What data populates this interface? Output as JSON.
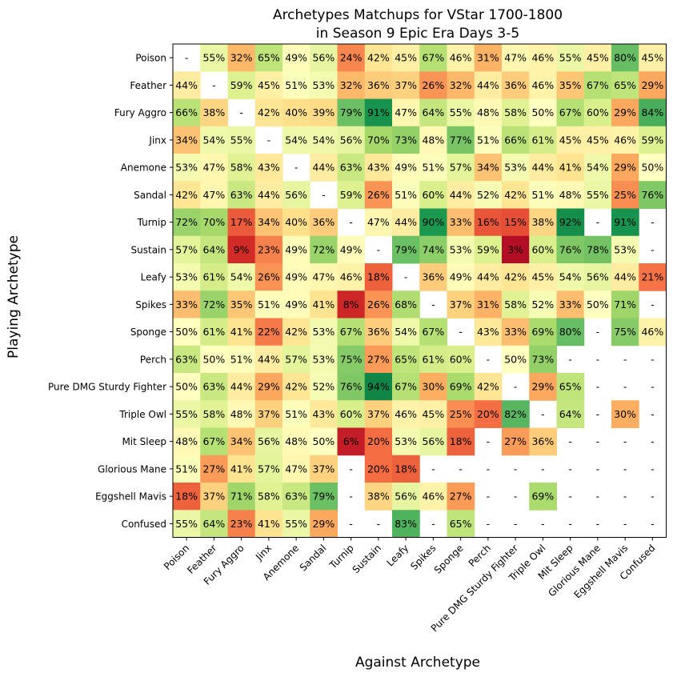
{
  "chart_data": {
    "type": "heatmap",
    "title": "Archetypes Matchups for VStar 1700-1800",
    "subtitle": "in Season 9 Epic Era Days 3-5",
    "xlabel": "Against Archetype",
    "ylabel": "Playing Archetype",
    "rows": [
      "Poison",
      "Feather",
      "Fury Aggro",
      "Jinx",
      "Anemone",
      "Sandal",
      "Turnip",
      "Sustain",
      "Leafy",
      "Spikes",
      "Sponge",
      "Perch",
      "Pure DMG Sturdy Fighter",
      "Triple Owl",
      "Mit Sleep",
      "Glorious Mane",
      "Eggshell Mavis",
      "Confused"
    ],
    "columns": [
      "Poison",
      "Feather",
      "Fury Aggro",
      "Jinx",
      "Anemone",
      "Sandal",
      "Turnip",
      "Sustain",
      "Leafy",
      "Spikes",
      "Sponge",
      "Perch",
      "Pure DMG Sturdy Fighter",
      "Triple Owl",
      "Mit Sleep",
      "Glorious Mane",
      "Eggshell Mavis",
      "Confused"
    ],
    "missing_label": "-",
    "value_suffix": "%",
    "color_scale": "RdYlGn",
    "values": [
      [
        null,
        55,
        32,
        65,
        49,
        56,
        24,
        42,
        45,
        67,
        46,
        31,
        47,
        46,
        55,
        45,
        80,
        45
      ],
      [
        44,
        null,
        59,
        45,
        51,
        53,
        32,
        36,
        37,
        26,
        32,
        44,
        36,
        46,
        35,
        67,
        65,
        29
      ],
      [
        66,
        38,
        null,
        42,
        40,
        39,
        79,
        91,
        47,
        64,
        55,
        48,
        58,
        50,
        67,
        60,
        29,
        84
      ],
      [
        34,
        54,
        55,
        null,
        54,
        54,
        56,
        70,
        73,
        48,
        77,
        51,
        66,
        61,
        45,
        45,
        46,
        59
      ],
      [
        53,
        47,
        58,
        43,
        null,
        44,
        63,
        43,
        49,
        51,
        57,
        34,
        53,
        44,
        41,
        54,
        29,
        50
      ],
      [
        42,
        47,
        63,
        44,
        56,
        null,
        59,
        26,
        51,
        60,
        44,
        52,
        42,
        51,
        48,
        55,
        25,
        76
      ],
      [
        72,
        70,
        17,
        34,
        40,
        36,
        null,
        47,
        44,
        90,
        33,
        16,
        15,
        38,
        92,
        null,
        91,
        null
      ],
      [
        57,
        64,
        9,
        23,
        49,
        72,
        49,
        null,
        79,
        74,
        53,
        59,
        3,
        60,
        76,
        78,
        53,
        null
      ],
      [
        53,
        61,
        54,
        26,
        49,
        47,
        46,
        18,
        null,
        36,
        49,
        44,
        42,
        45,
        54,
        56,
        44,
        21
      ],
      [
        33,
        72,
        35,
        51,
        49,
        41,
        8,
        26,
        68,
        null,
        37,
        31,
        58,
        52,
        33,
        50,
        71,
        null
      ],
      [
        50,
        61,
        41,
        22,
        42,
        53,
        67,
        36,
        54,
        67,
        null,
        43,
        33,
        69,
        80,
        null,
        75,
        46
      ],
      [
        63,
        50,
        51,
        44,
        57,
        53,
        75,
        27,
        65,
        61,
        60,
        null,
        50,
        73,
        null,
        null,
        null,
        null
      ],
      [
        50,
        63,
        44,
        29,
        42,
        52,
        76,
        94,
        67,
        30,
        69,
        42,
        null,
        29,
        65,
        null,
        null,
        null
      ],
      [
        55,
        58,
        48,
        37,
        51,
        43,
        60,
        37,
        46,
        45,
        25,
        20,
        82,
        null,
        64,
        null,
        30,
        null
      ],
      [
        48,
        67,
        34,
        56,
        48,
        50,
        6,
        20,
        53,
        56,
        18,
        null,
        27,
        36,
        null,
        null,
        null,
        null
      ],
      [
        51,
        27,
        41,
        57,
        47,
        37,
        null,
        20,
        18,
        null,
        null,
        null,
        null,
        null,
        null,
        null,
        null,
        null
      ],
      [
        18,
        37,
        71,
        58,
        63,
        79,
        null,
        38,
        56,
        46,
        27,
        null,
        null,
        69,
        null,
        null,
        null,
        null
      ],
      [
        55,
        64,
        23,
        41,
        55,
        29,
        null,
        null,
        83,
        null,
        65,
        null,
        null,
        null,
        null,
        null,
        null,
        null
      ]
    ]
  }
}
